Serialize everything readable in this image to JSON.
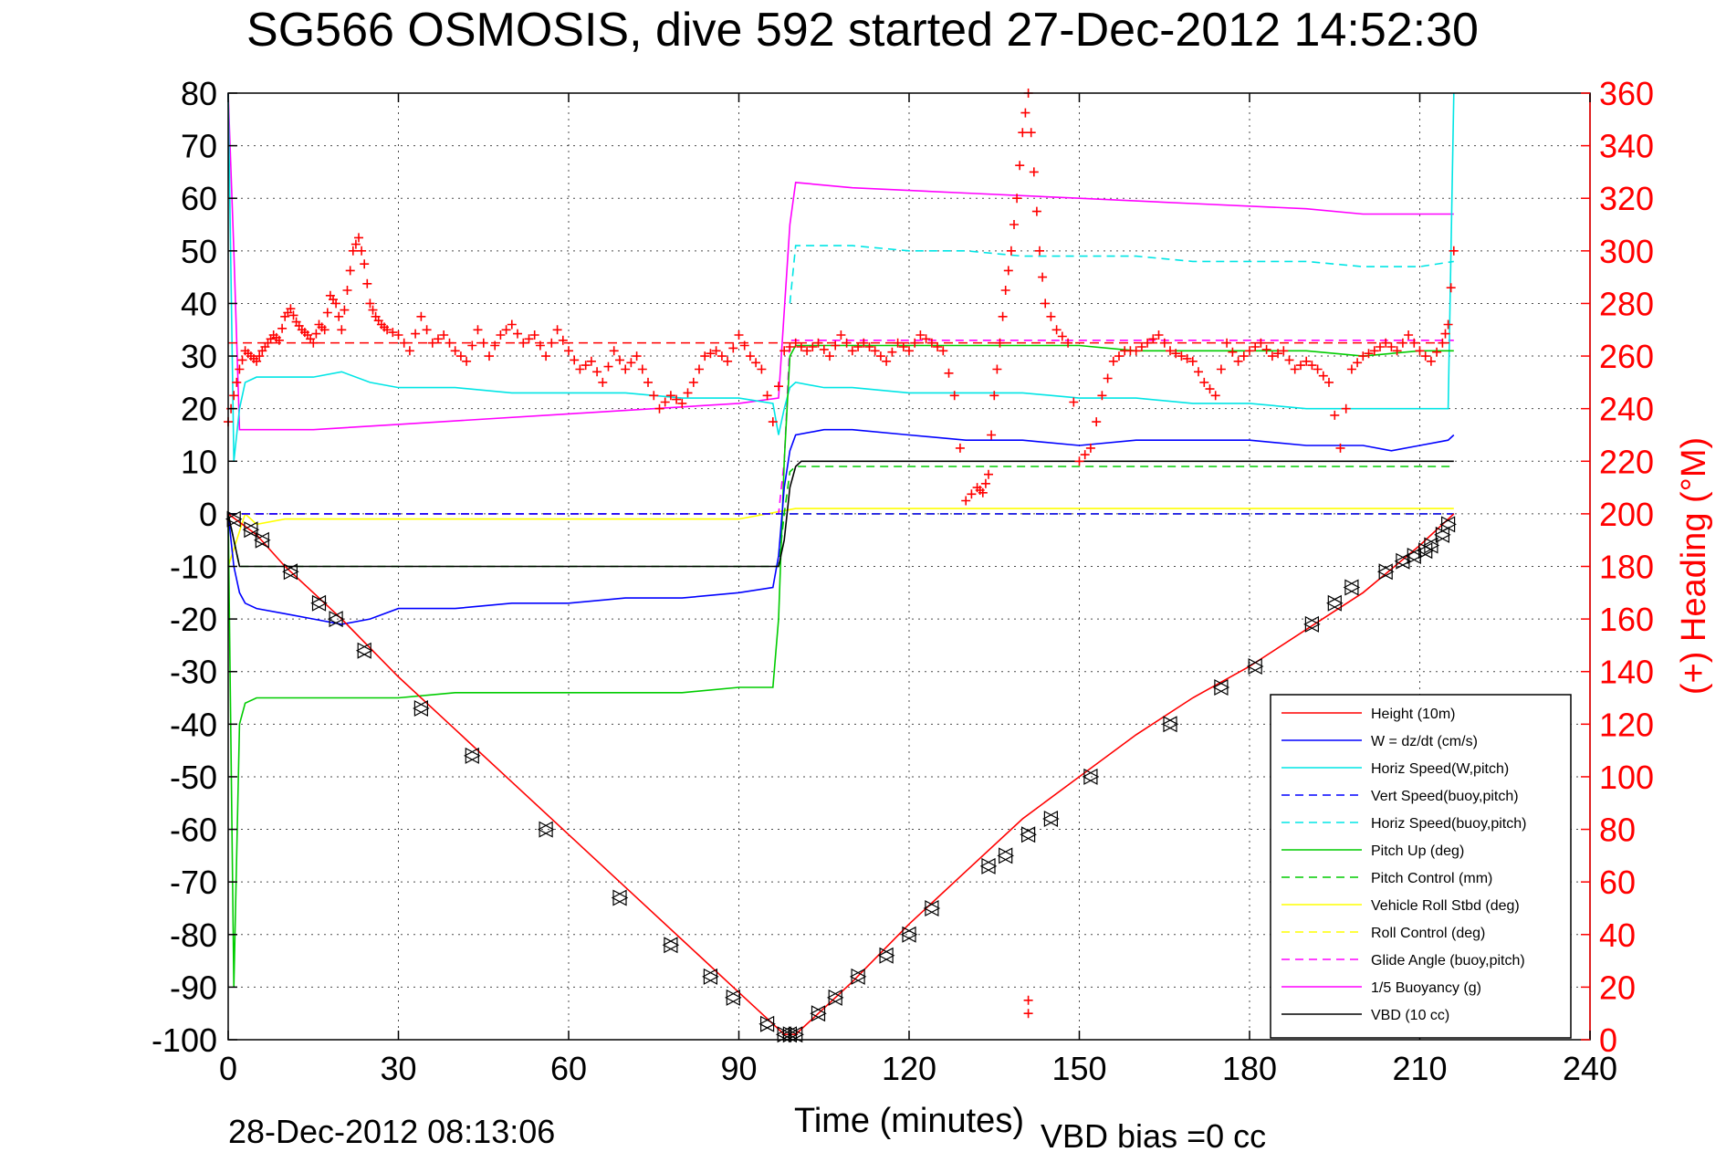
{
  "chart_data": {
    "type": "line",
    "title": "SG566 OSMOSIS, dive 592 started 27-Dec-2012 14:52:30",
    "xlabel": "Time (minutes)",
    "ylabel": "",
    "y2label": "(+) Heading (°M)",
    "footer_left": "28-Dec-2012 08:13:06",
    "footer_right": "VBD bias =0 cc",
    "xlim": [
      0,
      240
    ],
    "ylim": [
      -100,
      80
    ],
    "y2lim": [
      0,
      360
    ],
    "xticks": [
      0,
      30,
      60,
      90,
      120,
      150,
      180,
      210,
      240
    ],
    "yticks": [
      -100,
      -90,
      -80,
      -70,
      -60,
      -50,
      -40,
      -30,
      -20,
      -10,
      0,
      10,
      20,
      30,
      40,
      50,
      60,
      70,
      80
    ],
    "y2ticks": [
      0,
      20,
      40,
      60,
      80,
      100,
      120,
      140,
      160,
      180,
      200,
      220,
      240,
      260,
      280,
      300,
      320,
      340,
      360
    ],
    "grid": true,
    "legend_position": "bottom-right",
    "series": [
      {
        "name": "Height (10m)",
        "color": "#ff0000",
        "dash": "solid",
        "x": [
          0,
          5,
          10,
          20,
          30,
          40,
          50,
          60,
          70,
          80,
          90,
          96,
          98,
          100,
          105,
          110,
          120,
          130,
          140,
          150,
          160,
          170,
          180,
          190,
          200,
          210,
          216
        ],
        "y": [
          0,
          -4,
          -10,
          -20,
          -31,
          -41,
          -51,
          -61,
          -71,
          -81,
          -91,
          -97,
          -99,
          -99,
          -94,
          -89,
          -78,
          -68,
          -58,
          -50,
          -42,
          -35,
          -29,
          -22,
          -15,
          -6,
          0
        ]
      },
      {
        "name": "W = dz/dt (cm/s)",
        "color": "#0000ff",
        "dash": "solid",
        "x": [
          0,
          1,
          2,
          3,
          5,
          10,
          15,
          20,
          25,
          30,
          40,
          50,
          60,
          70,
          80,
          90,
          96,
          97,
          98,
          99,
          100,
          105,
          110,
          120,
          130,
          140,
          150,
          160,
          170,
          180,
          190,
          200,
          205,
          210,
          215,
          216
        ],
        "y": [
          0,
          -10,
          -15,
          -17,
          -18,
          -19,
          -20,
          -21,
          -20,
          -18,
          -18,
          -17,
          -17,
          -16,
          -16,
          -15,
          -14,
          -8,
          5,
          12,
          15,
          16,
          16,
          15,
          14,
          14,
          13,
          14,
          14,
          14,
          13,
          13,
          12,
          13,
          14,
          15
        ]
      },
      {
        "name": "Horiz Speed(W,pitch)",
        "color": "#00e5e5",
        "dash": "solid",
        "x": [
          0,
          1,
          2,
          3,
          5,
          10,
          15,
          20,
          25,
          30,
          40,
          50,
          60,
          70,
          80,
          90,
          96,
          97,
          98,
          99,
          100,
          105,
          110,
          120,
          130,
          140,
          150,
          160,
          170,
          180,
          190,
          200,
          210,
          215,
          216
        ],
        "y": [
          80,
          10,
          20,
          25,
          26,
          26,
          26,
          27,
          25,
          24,
          24,
          23,
          23,
          23,
          22,
          22,
          21,
          15,
          20,
          24,
          25,
          24,
          24,
          23,
          23,
          23,
          22,
          22,
          21,
          21,
          20,
          20,
          20,
          20,
          80
        ]
      },
      {
        "name": "Vert Speed(buoy,pitch)",
        "color": "#0000ff",
        "dash": "dashed",
        "x": [
          0,
          216
        ],
        "y": [
          0,
          0
        ]
      },
      {
        "name": "Horiz Speed(buoy,pitch)",
        "color": "#00e5e5",
        "dash": "dashed",
        "x": [
          99,
          100,
          110,
          120,
          130,
          140,
          150,
          160,
          170,
          180,
          190,
          200,
          210,
          216
        ],
        "y": [
          40,
          51,
          51,
          50,
          50,
          49,
          49,
          49,
          48,
          48,
          48,
          47,
          47,
          48
        ]
      },
      {
        "name": "Pitch Up (deg)",
        "color": "#00cc00",
        "dash": "solid",
        "x": [
          0,
          1,
          2,
          3,
          5,
          10,
          20,
          30,
          40,
          50,
          60,
          70,
          80,
          90,
          96,
          97,
          98,
          99,
          100,
          110,
          120,
          130,
          140,
          150,
          160,
          170,
          180,
          190,
          200,
          210,
          216
        ],
        "y": [
          0,
          -90,
          -40,
          -36,
          -35,
          -35,
          -35,
          -35,
          -34,
          -34,
          -34,
          -34,
          -34,
          -33,
          -33,
          -20,
          10,
          30,
          32,
          32,
          32,
          32,
          32,
          32,
          31,
          31,
          31,
          31,
          30,
          31,
          31
        ]
      },
      {
        "name": "Pitch Control (mm)",
        "color": "#00cc00",
        "dash": "dashed",
        "x": [
          0,
          2,
          3,
          10,
          50,
          97,
          98,
          99,
          100,
          150,
          216
        ],
        "y": [
          0,
          -10,
          -10,
          -10,
          -10,
          -10,
          0,
          8,
          9,
          9,
          9
        ]
      },
      {
        "name": "Vehicle Roll Stbd (deg)",
        "color": "#ffff00",
        "dash": "solid",
        "x": [
          0,
          3,
          5,
          10,
          20,
          30,
          40,
          50,
          60,
          70,
          80,
          90,
          100,
          110,
          120,
          130,
          140,
          150,
          160,
          170,
          180,
          190,
          200,
          210,
          216
        ],
        "y": [
          -10,
          0,
          -2,
          -1,
          -1,
          -1,
          -1,
          -1,
          -1,
          -1,
          -1,
          -1,
          1,
          1,
          1,
          1,
          1,
          1,
          1,
          1,
          1,
          1,
          1,
          1,
          1
        ]
      },
      {
        "name": "Roll Control (deg)",
        "color": "#ffff00",
        "dash": "dashed",
        "x": [
          0,
          216
        ],
        "y": [
          0,
          0
        ]
      },
      {
        "name": "Glide Angle (buoy,pitch)",
        "color": "#ff00ff",
        "dash": "dashed",
        "x": [
          0,
          97,
          98,
          99,
          216
        ],
        "y": [
          0,
          0,
          10,
          33,
          33
        ]
      },
      {
        "name": "1/5 Buoyancy (g)",
        "color": "#ff00ff",
        "dash": "solid",
        "x": [
          0,
          1,
          2,
          15,
          30,
          60,
          90,
          97,
          99,
          100,
          110,
          130,
          150,
          170,
          190,
          200,
          210,
          215,
          216
        ],
        "y": [
          80,
          50,
          16,
          16,
          17,
          19,
          21,
          22,
          55,
          63,
          62,
          61,
          60,
          59,
          58,
          57,
          57,
          57,
          57
        ]
      },
      {
        "name": "VBD (10 cc)",
        "color": "#000000",
        "dash": "solid",
        "x": [
          0,
          2,
          3,
          10,
          50,
          97,
          98,
          99,
          100,
          101,
          150,
          216
        ],
        "y": [
          0,
          -10,
          -10,
          -10,
          -10,
          -10,
          -5,
          5,
          9,
          10,
          10,
          10
        ]
      }
    ],
    "heading": {
      "name": "(+) Heading",
      "color": "#ff0000",
      "marker": "+",
      "axis": "right",
      "x": [
        0,
        1,
        2,
        3,
        4,
        5,
        6,
        7,
        8,
        9,
        10,
        11,
        12,
        13,
        14,
        15,
        16,
        17,
        18,
        19,
        20,
        21,
        22,
        23,
        24,
        25,
        26,
        27,
        28,
        30,
        32,
        34,
        36,
        38,
        40,
        42,
        44,
        46,
        48,
        50,
        52,
        54,
        56,
        58,
        60,
        62,
        64,
        66,
        68,
        70,
        72,
        74,
        76,
        78,
        80,
        82,
        84,
        86,
        88,
        90,
        92,
        94,
        96,
        98,
        100,
        102,
        104,
        106,
        108,
        110,
        112,
        114,
        116,
        118,
        120,
        122,
        124,
        126,
        128,
        130,
        132,
        133,
        134,
        135,
        136,
        137,
        138,
        139,
        140,
        141,
        142,
        143,
        144,
        146,
        148,
        150,
        152,
        154,
        156,
        158,
        160,
        162,
        164,
        166,
        168,
        170,
        172,
        174,
        176,
        178,
        180,
        182,
        184,
        186,
        188,
        190,
        192,
        194,
        196,
        198,
        200,
        202,
        204,
        206,
        208,
        210,
        212,
        214,
        215,
        216
      ],
      "y": [
        235,
        245,
        255,
        262,
        260,
        258,
        262,
        265,
        268,
        266,
        275,
        278,
        273,
        270,
        268,
        265,
        272,
        270,
        283,
        280,
        270,
        285,
        300,
        305,
        295,
        280,
        275,
        272,
        270,
        268,
        262,
        275,
        265,
        268,
        262,
        258,
        270,
        260,
        268,
        272,
        265,
        268,
        260,
        270,
        262,
        255,
        258,
        250,
        262,
        255,
        260,
        250,
        240,
        245,
        242,
        250,
        260,
        262,
        258,
        268,
        260,
        255,
        235,
        262,
        265,
        262,
        265,
        260,
        268,
        262,
        265,
        262,
        258,
        265,
        262,
        268,
        265,
        262,
        245,
        205,
        210,
        208,
        215,
        245,
        265,
        285,
        300,
        320,
        345,
        360,
        330,
        300,
        280,
        270,
        265,
        220,
        225,
        245,
        258,
        262,
        262,
        265,
        268,
        262,
        260,
        258,
        250,
        245,
        265,
        258,
        262,
        265,
        260,
        262,
        255,
        258,
        255,
        250,
        225,
        255,
        260,
        262,
        265,
        262,
        268,
        262,
        258,
        265,
        272,
        300
      ],
      "outliers_x": [
        141,
        141
      ],
      "outliers_y": [
        15,
        10
      ],
      "mean_value": 265
    },
    "triangle_markers": {
      "color": "#000000",
      "x": [
        1,
        4,
        6,
        11,
        16,
        19,
        24,
        34,
        43,
        56,
        69,
        78,
        85,
        89,
        95,
        98,
        99,
        100,
        104,
        107,
        111,
        116,
        120,
        124,
        134,
        137,
        141,
        145,
        152,
        166,
        175,
        181,
        191,
        195,
        198,
        204,
        207,
        209,
        211,
        212,
        214,
        215
      ],
      "y": [
        -1,
        -3,
        -5,
        -11,
        -17,
        -20,
        -26,
        -37,
        -46,
        -60,
        -73,
        -82,
        -88,
        -92,
        -97,
        -99,
        -99,
        -99,
        -95,
        -92,
        -88,
        -84,
        -80,
        -75,
        -67,
        -65,
        -61,
        -58,
        -50,
        -40,
        -33,
        -29,
        -21,
        -17,
        -14,
        -11,
        -9,
        -8,
        -7,
        -6,
        -4,
        -2
      ]
    }
  }
}
